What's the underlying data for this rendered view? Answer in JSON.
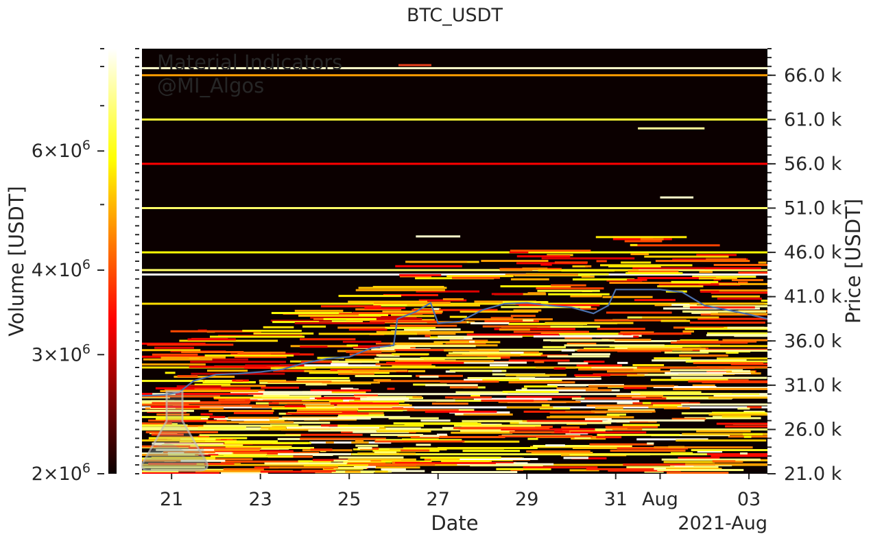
{
  "chart_data": {
    "type": "heatmap",
    "title": "BTC_USDT",
    "xlabel": "Date",
    "ylabel": "Price [USDT]",
    "x_start": "2021-07-20T08:00",
    "x_end": "2021-08-03T10:00",
    "x_ticks": [
      {
        "date": "2021-07-21",
        "label": "21"
      },
      {
        "date": "2021-07-23",
        "label": "23"
      },
      {
        "date": "2021-07-25",
        "label": "25"
      },
      {
        "date": "2021-07-27",
        "label": "27"
      },
      {
        "date": "2021-07-29",
        "label": "29"
      },
      {
        "date": "2021-07-31",
        "label": "31"
      },
      {
        "date": "2021-08-01",
        "label": "Aug"
      },
      {
        "date": "2021-08-03",
        "label": "03"
      }
    ],
    "x_offset_label": "2021-Aug",
    "ylim": [
      21000,
      69000
    ],
    "y_ticks": [
      {
        "value": 21000,
        "label": "21.0 k"
      },
      {
        "value": 26000,
        "label": "26.0 k"
      },
      {
        "value": 31000,
        "label": "31.0 k"
      },
      {
        "value": 36000,
        "label": "36.0 k"
      },
      {
        "value": 41000,
        "label": "41.0 k"
      },
      {
        "value": 46000,
        "label": "46.0 k"
      },
      {
        "value": 51000,
        "label": "51.0 k"
      },
      {
        "value": 56000,
        "label": "56.0 k"
      },
      {
        "value": 61000,
        "label": "61.0 k"
      },
      {
        "value": 66000,
        "label": "66.0 k"
      }
    ],
    "y_minor_step": 1000,
    "colorbar": {
      "label": "Volume [USDT]",
      "scale": "log",
      "range": [
        2000000,
        8500000
      ],
      "colormap": "hot",
      "ticks": [
        {
          "value": 2000000,
          "mantissa": "2",
          "base": "10",
          "exponent": "6"
        },
        {
          "value": 3000000,
          "mantissa": "3",
          "base": "10",
          "exponent": "6"
        },
        {
          "value": 4000000,
          "mantissa": "4",
          "base": "10",
          "exponent": "6"
        },
        {
          "value": 6000000,
          "mantissa": "6",
          "base": "10",
          "exponent": "6"
        }
      ],
      "minor_ticks": [
        5000000,
        7000000,
        8000000
      ]
    },
    "price_series": {
      "color": "#4c72b0",
      "points": [
        [
          "2021-07-20T08:00",
          29800
        ],
        [
          "2021-07-20T20:00",
          29900
        ],
        [
          "2021-07-21T04:00",
          30200
        ],
        [
          "2021-07-21T12:00",
          31500
        ],
        [
          "2021-07-22T00:00",
          32200
        ],
        [
          "2021-07-22T12:00",
          32300
        ],
        [
          "2021-07-23T00:00",
          32500
        ],
        [
          "2021-07-23T12:00",
          32800
        ],
        [
          "2021-07-24T00:00",
          33500
        ],
        [
          "2021-07-24T12:00",
          34000
        ],
        [
          "2021-07-25T00:00",
          34200
        ],
        [
          "2021-07-25T12:00",
          35200
        ],
        [
          "2021-07-26T00:00",
          35500
        ],
        [
          "2021-07-26T02:00",
          38500
        ],
        [
          "2021-07-26T12:00",
          39300
        ],
        [
          "2021-07-26T20:00",
          40300
        ],
        [
          "2021-07-27T00:00",
          38000
        ],
        [
          "2021-07-27T12:00",
          38200
        ],
        [
          "2021-07-28T00:00",
          39500
        ],
        [
          "2021-07-28T12:00",
          40200
        ],
        [
          "2021-07-29T00:00",
          40300
        ],
        [
          "2021-07-29T12:00",
          40000
        ],
        [
          "2021-07-30T00:00",
          39800
        ],
        [
          "2021-07-30T12:00",
          39100
        ],
        [
          "2021-07-30T20:00",
          40000
        ],
        [
          "2021-07-31T00:00",
          41800
        ],
        [
          "2021-07-31T12:00",
          41800
        ],
        [
          "2021-08-01T00:00",
          41800
        ],
        [
          "2021-08-01T12:00",
          41500
        ],
        [
          "2021-08-02T00:00",
          40000
        ],
        [
          "2021-08-02T12:00",
          39500
        ],
        [
          "2021-08-03T00:00",
          39000
        ],
        [
          "2021-08-03T10:00",
          38500
        ]
      ]
    },
    "heat_bands": [
      {
        "price": 66800,
        "level": 0.95,
        "from": "2021-07-20T08:00",
        "to": "2021-08-03T10:00"
      },
      {
        "price": 66000,
        "level": 0.6,
        "from": "2021-07-20T08:00",
        "to": "2021-08-03T10:00"
      },
      {
        "price": 61000,
        "level": 0.8,
        "from": "2021-07-20T08:00",
        "to": "2021-08-03T10:00"
      },
      {
        "price": 60000,
        "level": 0.9,
        "from": "2021-07-31T12:00",
        "to": "2021-08-02T00:00"
      },
      {
        "price": 56000,
        "level": 0.35,
        "from": "2021-07-20T08:00",
        "to": "2021-08-03T10:00"
      },
      {
        "price": 52200,
        "level": 0.95,
        "from": "2021-08-01T00:00",
        "to": "2021-08-01T18:00"
      },
      {
        "price": 51000,
        "level": 0.85,
        "from": "2021-07-20T08:00",
        "to": "2021-08-03T10:00"
      },
      {
        "price": 47800,
        "level": 0.95,
        "from": "2021-07-26T12:00",
        "to": "2021-07-27T12:00"
      },
      {
        "price": 46000,
        "level": 0.75,
        "from": "2021-07-20T08:00",
        "to": "2021-08-03T10:00"
      },
      {
        "price": 44000,
        "level": 0.85,
        "from": "2021-07-20T08:00",
        "to": "2021-08-03T10:00"
      },
      {
        "price": 43500,
        "level": 1.0,
        "from": "2021-07-20T08:00",
        "to": "2021-08-03T10:00"
      },
      {
        "price": 40200,
        "level": 0.7,
        "from": "2021-07-20T08:00",
        "to": "2021-08-03T10:00"
      },
      {
        "price": 35000,
        "level": 0.85,
        "from": "2021-07-26T00:00",
        "to": "2021-08-03T10:00"
      },
      {
        "price": 33000,
        "level": 0.7,
        "from": "2021-07-20T08:00",
        "to": "2021-08-03T10:00"
      },
      {
        "price": 30000,
        "level": 0.95,
        "from": "2021-07-20T08:00",
        "to": "2021-08-03T10:00"
      },
      {
        "price": 28500,
        "level": 1.0,
        "from": "2021-07-20T08:00",
        "to": "2021-08-03T10:00"
      },
      {
        "price": 26000,
        "level": 0.85,
        "from": "2021-07-20T08:00",
        "to": "2021-08-03T10:00"
      },
      {
        "price": 23200,
        "level": 0.8,
        "from": "2021-07-20T08:00",
        "to": "2021-08-03T10:00"
      },
      {
        "price": 22000,
        "level": 0.65,
        "from": "2021-07-20T08:00",
        "to": "2021-08-03T10:00"
      }
    ],
    "legend": {
      "placement": "top-center",
      "entry_color": "#e8401c",
      "label": ""
    },
    "watermark": {
      "lines": [
        "Material Indicators",
        "@MI_Algos"
      ]
    },
    "grid": false
  }
}
